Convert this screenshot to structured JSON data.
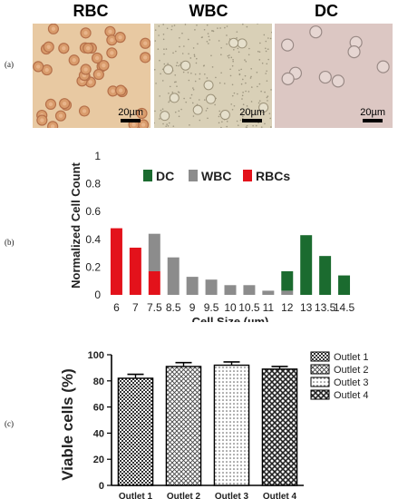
{
  "panel_a": {
    "label": "(a)",
    "images": [
      {
        "title": "RBC",
        "scale_label": "20µm"
      },
      {
        "title": "WBC",
        "scale_label": "20µm"
      },
      {
        "title": "DC",
        "scale_label": "20µm"
      }
    ]
  },
  "panel_b_label": "(b)",
  "panel_c_label": "(c)",
  "chart_data": [
    {
      "type": "bar",
      "xlabel": "Cell Size (µm)",
      "ylabel": "Normalized Cell Count",
      "ylim": [
        0,
        1
      ],
      "yticks": [
        "0",
        "0.2",
        "0.4",
        "0.6",
        "0.8",
        "1"
      ],
      "grid": false,
      "legend_position": "top-right",
      "categories": [
        "6",
        "7",
        "7.5",
        "8.5",
        "9",
        "9.5",
        "10",
        "10.5",
        "11",
        "12",
        "13",
        "13.5",
        "14.5"
      ],
      "series": [
        {
          "name": "DC",
          "color": "#1b6b2f",
          "values": [
            0,
            0,
            0,
            0,
            0,
            0,
            0,
            0,
            0,
            0.14,
            0.43,
            0.28,
            0.14
          ]
        },
        {
          "name": "WBC",
          "color": "#8c8c8c",
          "values": [
            0,
            0,
            0.27,
            0.27,
            0.13,
            0.11,
            0.07,
            0.07,
            0.03,
            0.03,
            0,
            0,
            0
          ]
        },
        {
          "name": "RBCs",
          "color": "#e3121b",
          "values": [
            0.48,
            0.34,
            0.17,
            0,
            0,
            0,
            0,
            0,
            0,
            0,
            0,
            0,
            0
          ]
        }
      ]
    },
    {
      "type": "bar",
      "xlabel": "",
      "ylabel": "Viable cells (%)",
      "ylim": [
        0,
        100
      ],
      "yticks": [
        "0",
        "20",
        "40",
        "60",
        "80",
        "100"
      ],
      "grid": false,
      "legend_position": "right",
      "categories": [
        "Outlet 1",
        "Outlet 2",
        "Outlet 3",
        "Outlet 4"
      ],
      "series": [
        {
          "name": "",
          "values": [
            82,
            91,
            92,
            89
          ],
          "errors": [
            3,
            3,
            2.5,
            2
          ]
        }
      ],
      "legend": [
        "Outlet 1",
        "Outlet 2",
        "Outlet 3",
        "Outlet 4"
      ]
    }
  ]
}
